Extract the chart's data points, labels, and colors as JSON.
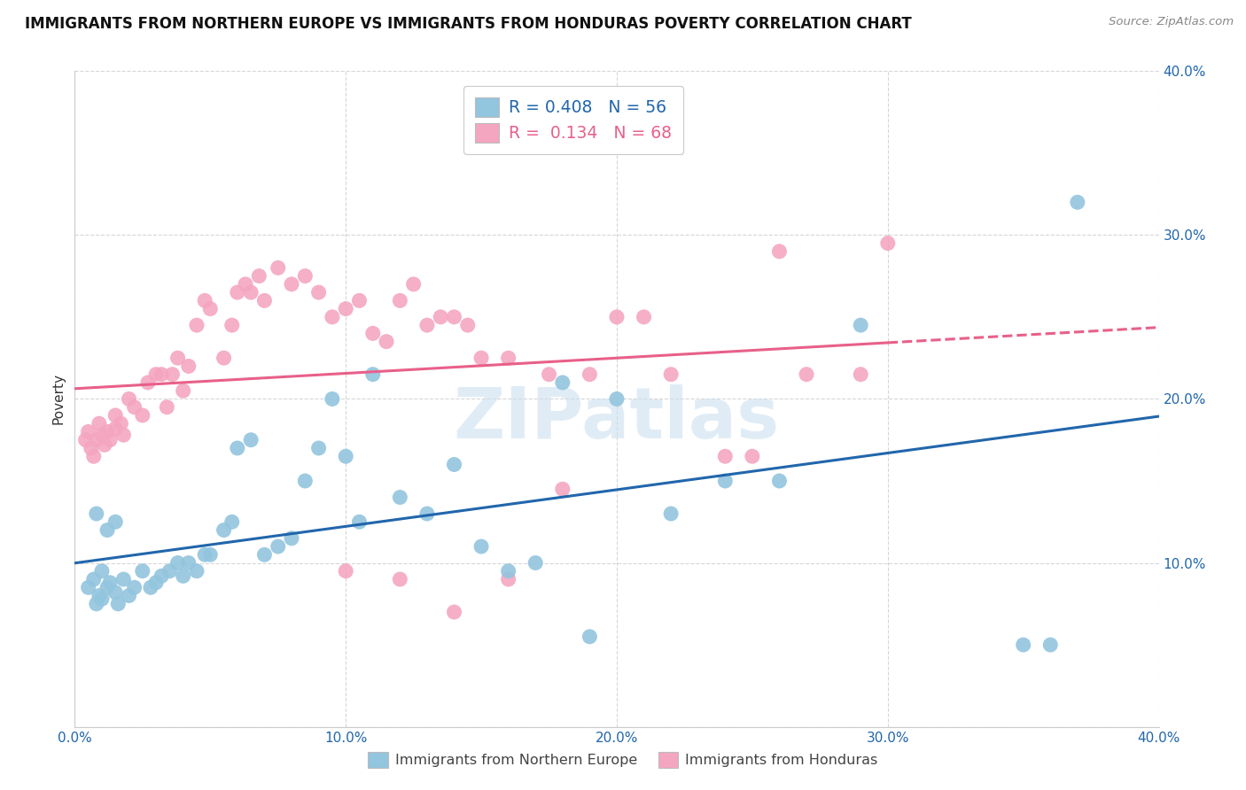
{
  "title": "IMMIGRANTS FROM NORTHERN EUROPE VS IMMIGRANTS FROM HONDURAS POVERTY CORRELATION CHART",
  "source": "Source: ZipAtlas.com",
  "ylabel": "Poverty",
  "xlim": [
    0,
    0.4
  ],
  "ylim": [
    0,
    0.4
  ],
  "xticks": [
    0.0,
    0.1,
    0.2,
    0.3,
    0.4
  ],
  "yticks": [
    0.0,
    0.1,
    0.2,
    0.3,
    0.4
  ],
  "blue_color": "#92c5de",
  "pink_color": "#f4a6c0",
  "blue_line_color": "#2166ac",
  "pink_line_color": "#e8608a",
  "R_blue": 0.408,
  "N_blue": 56,
  "R_pink": 0.134,
  "N_pink": 68,
  "legend_label_blue": "Immigrants from Northern Europe",
  "legend_label_pink": "Immigrants from Honduras",
  "watermark": "ZIPatlas",
  "blue_scatter_x": [
    0.005,
    0.007,
    0.008,
    0.009,
    0.01,
    0.01,
    0.012,
    0.013,
    0.015,
    0.016,
    0.018,
    0.02,
    0.022,
    0.025,
    0.028,
    0.03,
    0.032,
    0.035,
    0.038,
    0.04,
    0.042,
    0.045,
    0.048,
    0.05,
    0.055,
    0.058,
    0.06,
    0.065,
    0.07,
    0.075,
    0.08,
    0.085,
    0.09,
    0.095,
    0.1,
    0.105,
    0.11,
    0.12,
    0.13,
    0.14,
    0.15,
    0.16,
    0.17,
    0.18,
    0.19,
    0.2,
    0.22,
    0.24,
    0.26,
    0.29,
    0.35,
    0.36,
    0.008,
    0.012,
    0.015,
    0.37
  ],
  "blue_scatter_y": [
    0.085,
    0.09,
    0.075,
    0.08,
    0.078,
    0.095,
    0.085,
    0.088,
    0.082,
    0.075,
    0.09,
    0.08,
    0.085,
    0.095,
    0.085,
    0.088,
    0.092,
    0.095,
    0.1,
    0.092,
    0.1,
    0.095,
    0.105,
    0.105,
    0.12,
    0.125,
    0.17,
    0.175,
    0.105,
    0.11,
    0.115,
    0.15,
    0.17,
    0.2,
    0.165,
    0.125,
    0.215,
    0.14,
    0.13,
    0.16,
    0.11,
    0.095,
    0.1,
    0.21,
    0.055,
    0.2,
    0.13,
    0.15,
    0.15,
    0.245,
    0.05,
    0.05,
    0.13,
    0.12,
    0.125,
    0.32
  ],
  "pink_scatter_x": [
    0.004,
    0.005,
    0.006,
    0.007,
    0.008,
    0.009,
    0.01,
    0.011,
    0.012,
    0.013,
    0.015,
    0.015,
    0.017,
    0.018,
    0.02,
    0.022,
    0.025,
    0.027,
    0.03,
    0.032,
    0.034,
    0.036,
    0.038,
    0.04,
    0.042,
    0.045,
    0.048,
    0.05,
    0.055,
    0.058,
    0.06,
    0.063,
    0.065,
    0.068,
    0.07,
    0.075,
    0.08,
    0.085,
    0.09,
    0.095,
    0.1,
    0.105,
    0.11,
    0.115,
    0.12,
    0.125,
    0.13,
    0.135,
    0.14,
    0.145,
    0.15,
    0.16,
    0.175,
    0.19,
    0.2,
    0.21,
    0.22,
    0.24,
    0.26,
    0.27,
    0.29,
    0.3,
    0.1,
    0.12,
    0.14,
    0.16,
    0.18,
    0.25
  ],
  "pink_scatter_y": [
    0.175,
    0.18,
    0.17,
    0.165,
    0.175,
    0.185,
    0.178,
    0.172,
    0.18,
    0.175,
    0.182,
    0.19,
    0.185,
    0.178,
    0.2,
    0.195,
    0.19,
    0.21,
    0.215,
    0.215,
    0.195,
    0.215,
    0.225,
    0.205,
    0.22,
    0.245,
    0.26,
    0.255,
    0.225,
    0.245,
    0.265,
    0.27,
    0.265,
    0.275,
    0.26,
    0.28,
    0.27,
    0.275,
    0.265,
    0.25,
    0.255,
    0.26,
    0.24,
    0.235,
    0.26,
    0.27,
    0.245,
    0.25,
    0.25,
    0.245,
    0.225,
    0.225,
    0.215,
    0.215,
    0.25,
    0.25,
    0.215,
    0.165,
    0.29,
    0.215,
    0.215,
    0.295,
    0.095,
    0.09,
    0.07,
    0.09,
    0.145,
    0.165
  ]
}
